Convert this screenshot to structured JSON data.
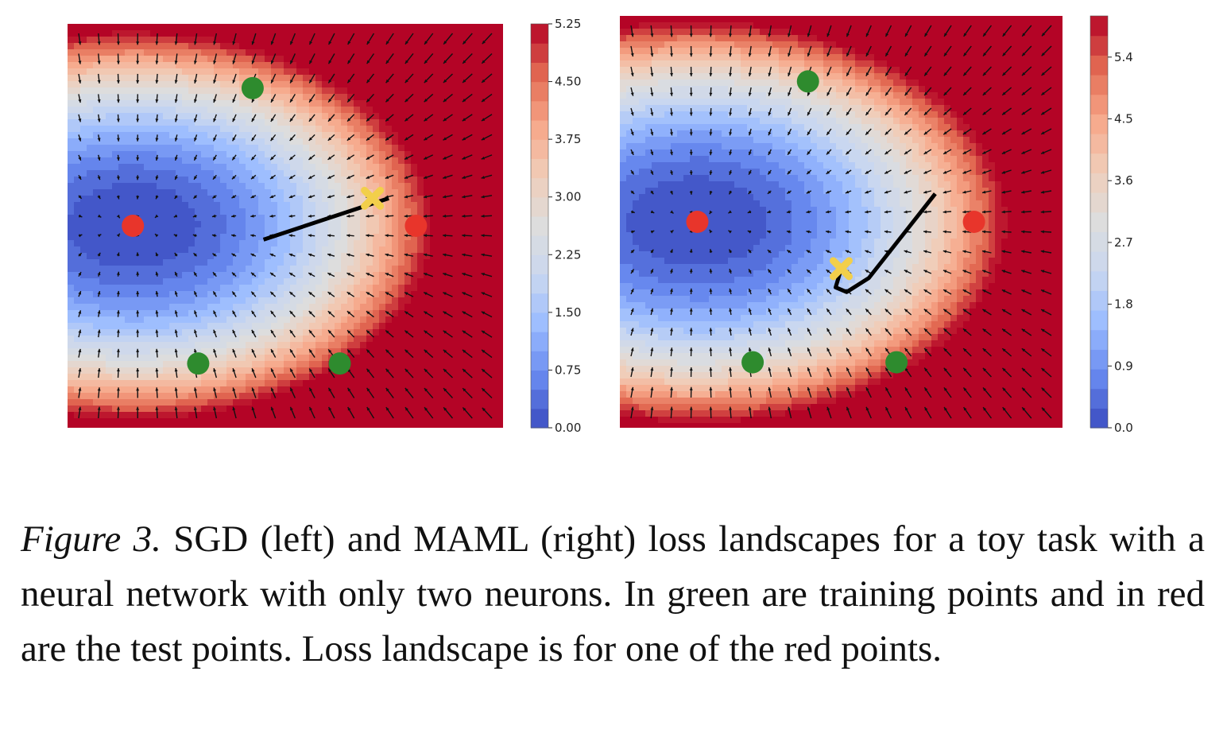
{
  "figure": {
    "colormap": [
      "#3b4cc0",
      "#6788ee",
      "#9abbff",
      "#c9d7f0",
      "#dddddd",
      "#f0cdb9",
      "#f7a789",
      "#e26952",
      "#b40426"
    ],
    "legend_colors": {
      "train": "#2e8b2e",
      "test": "#e8352b",
      "start": "#f2cf4a",
      "path": "#000000"
    },
    "panels": [
      {
        "label": "SGD",
        "colorbar": {
          "ticks": [
            "0.00",
            "0.75",
            "1.50",
            "2.25",
            "3.00",
            "3.75",
            "4.50",
            "5.25"
          ],
          "ylim": [
            0,
            5.25
          ]
        },
        "train_points": [
          [
            -0.3,
            1.5
          ],
          [
            -0.8,
            -1.5
          ],
          [
            0.5,
            -1.5
          ]
        ],
        "test_points": [
          [
            -1.4,
            0.0
          ],
          [
            1.2,
            0.0
          ]
        ],
        "start_point": [
          0.8,
          0.3
        ],
        "path": [
          [
            0.95,
            0.3
          ],
          [
            -0.2,
            -0.15
          ]
        ]
      },
      {
        "label": "MAML",
        "colorbar": {
          "ticks": [
            "0.0",
            "0.9",
            "1.8",
            "2.7",
            "3.6",
            "4.5",
            "5.4"
          ],
          "ylim": [
            0,
            6.0
          ]
        },
        "train_points": [
          [
            -0.3,
            1.5
          ],
          [
            -0.8,
            -1.5
          ],
          [
            0.5,
            -1.5
          ]
        ],
        "test_points": [
          [
            -1.3,
            0.0
          ],
          [
            1.2,
            0.0
          ]
        ],
        "start_point": [
          0.0,
          -0.5
        ],
        "path": [
          [
            0.85,
            0.3
          ],
          [
            0.25,
            -0.6
          ],
          [
            0.05,
            -0.75
          ],
          [
            -0.05,
            -0.7
          ],
          [
            0.0,
            -0.5
          ]
        ]
      }
    ]
  },
  "caption": {
    "lead": "Figure 3.",
    "text": " SGD (left) and MAML (right) loss landscapes for a toy task with a neural network with only two neurons. In green are training points and in red are the test points. Loss landscape is for one of the red points."
  }
}
